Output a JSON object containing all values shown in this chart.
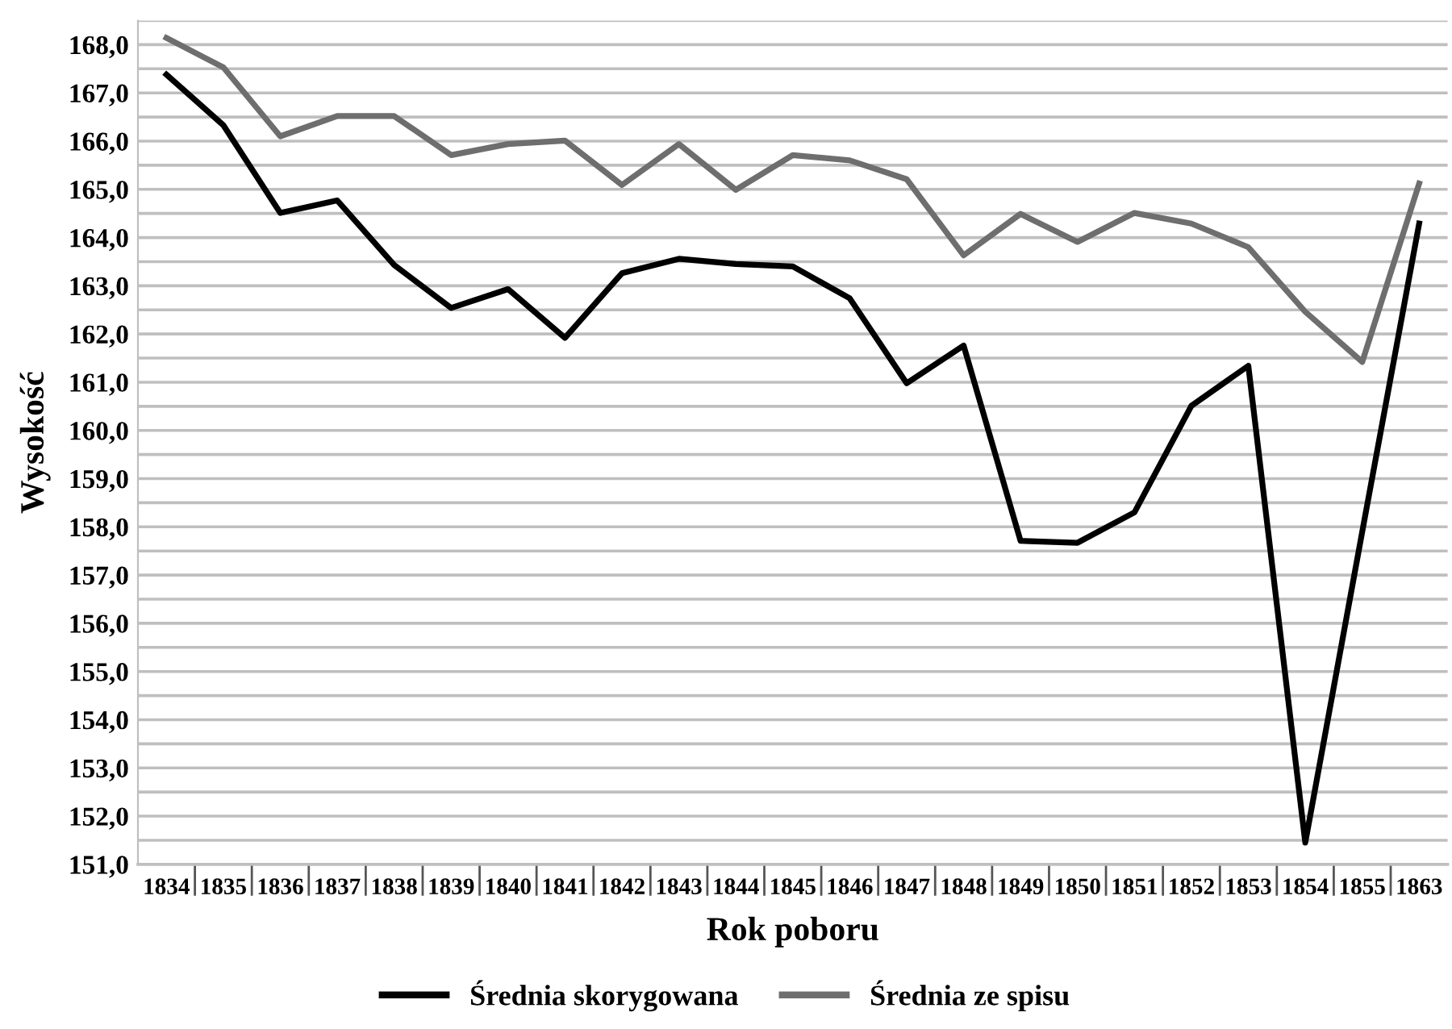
{
  "chart_data": {
    "type": "line",
    "xlabel": "Rok poboru",
    "ylabel": "Wysokość",
    "categories": [
      "1834",
      "1835",
      "1836",
      "1837",
      "1838",
      "1839",
      "1840",
      "1841",
      "1842",
      "1843",
      "1844",
      "1845",
      "1846",
      "1847",
      "1848",
      "1849",
      "1850",
      "1851",
      "1852",
      "1853",
      "1854",
      "1855",
      "1863"
    ],
    "series": [
      {
        "name": "Średnia skorygowana",
        "color": "#000000",
        "values": [
          167.38,
          166.33,
          164.51,
          164.77,
          163.43,
          162.54,
          162.93,
          161.92,
          163.26,
          163.56,
          163.45,
          163.4,
          162.74,
          160.98,
          161.76,
          157.71,
          157.67,
          158.3,
          160.51,
          161.34,
          151.45,
          157.9,
          164.29
        ]
      },
      {
        "name": "Średnia ze spisu",
        "color": "#6e6e6e",
        "values": [
          168.14,
          167.53,
          166.1,
          166.52,
          166.52,
          165.71,
          165.94,
          166.01,
          165.09,
          165.94,
          164.99,
          165.71,
          165.6,
          165.21,
          163.63,
          164.49,
          163.91,
          164.51,
          164.29,
          163.8,
          162.46,
          161.42,
          165.12
        ]
      }
    ],
    "ylim": [
      151,
      168.5
    ],
    "yticks": [
      {
        "value": 151,
        "label": "151,0"
      },
      {
        "value": 151.5,
        "label": null
      },
      {
        "value": 152,
        "label": "152,0"
      },
      {
        "value": 152.5,
        "label": null
      },
      {
        "value": 153,
        "label": "153,0"
      },
      {
        "value": 153.5,
        "label": null
      },
      {
        "value": 154,
        "label": "154,0"
      },
      {
        "value": 154.5,
        "label": null
      },
      {
        "value": 155,
        "label": "155,0"
      },
      {
        "value": 155.5,
        "label": null
      },
      {
        "value": 156,
        "label": "156,0"
      },
      {
        "value": 156.5,
        "label": null
      },
      {
        "value": 157,
        "label": "157,0"
      },
      {
        "value": 157.5,
        "label": null
      },
      {
        "value": 158,
        "label": "158,0"
      },
      {
        "value": 158.5,
        "label": null
      },
      {
        "value": 159,
        "label": "159,0"
      },
      {
        "value": 159.5,
        "label": null
      },
      {
        "value": 160,
        "label": "160,0"
      },
      {
        "value": 160.5,
        "label": null
      },
      {
        "value": 161,
        "label": "161,0"
      },
      {
        "value": 161.5,
        "label": null
      },
      {
        "value": 162,
        "label": "162,0"
      },
      {
        "value": 162.5,
        "label": null
      },
      {
        "value": 163,
        "label": "163,0"
      },
      {
        "value": 163.5,
        "label": null
      },
      {
        "value": 164,
        "label": "164,0"
      },
      {
        "value": 164.5,
        "label": null
      },
      {
        "value": 165,
        "label": "165,0"
      },
      {
        "value": 165.5,
        "label": null
      },
      {
        "value": 166,
        "label": "166,0"
      },
      {
        "value": 166.5,
        "label": null
      },
      {
        "value": 167,
        "label": "167,0"
      },
      {
        "value": 167.5,
        "label": null
      },
      {
        "value": 168,
        "label": "168,0"
      },
      {
        "value": 168.5,
        "label": null
      }
    ],
    "grid": "y",
    "legend": "bottom",
    "marker": "none",
    "line_style": "solid"
  }
}
